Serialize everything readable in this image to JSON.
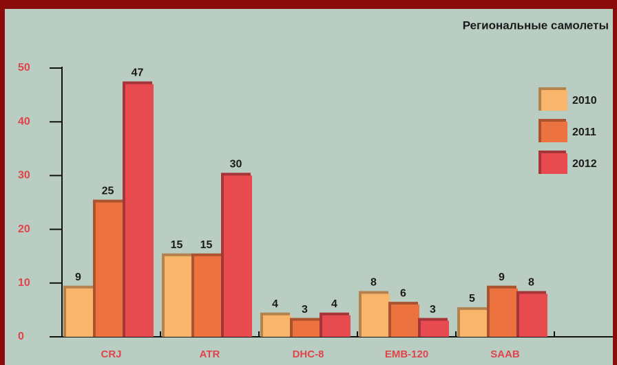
{
  "chart_data": {
    "type": "bar",
    "title": "Региональные самолеты",
    "categories": [
      "CRJ",
      "ATR",
      "DHC-8",
      "EMB-120",
      "SAAB"
    ],
    "series": [
      {
        "name": "2010",
        "color": "#f8b56b",
        "values": [
          9,
          15,
          4,
          8,
          5
        ]
      },
      {
        "name": "2011",
        "color": "#ec7340",
        "values": [
          25,
          15,
          3,
          6,
          9
        ]
      },
      {
        "name": "2012",
        "color": "#e74a4f",
        "values": [
          47,
          30,
          4,
          3,
          8
        ]
      }
    ],
    "ylim": [
      0,
      50
    ],
    "yticks": [
      0,
      10,
      20,
      30,
      40,
      50
    ],
    "legend": "right"
  }
}
